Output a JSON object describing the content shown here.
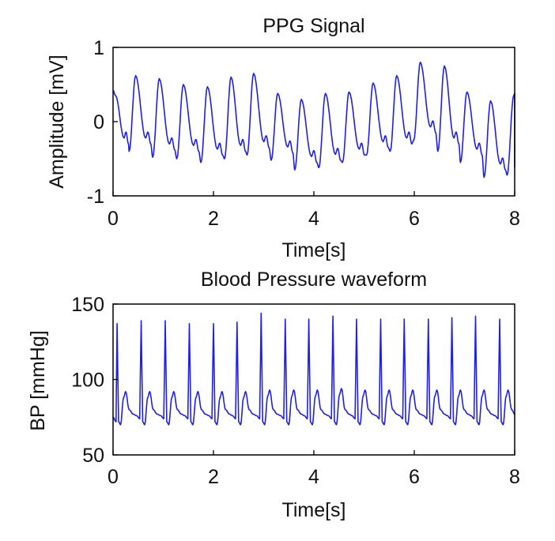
{
  "chart_data": [
    {
      "type": "line",
      "title": "PPG Signal",
      "xlabel": "Time[s]",
      "ylabel": "Amplitude [mV]",
      "xlim": [
        0,
        8
      ],
      "ylim": [
        -1,
        1
      ],
      "x_ticks": [
        "0",
        "2",
        "4",
        "6",
        "8"
      ],
      "y_ticks": [
        "-1",
        "0",
        "1"
      ],
      "grid": false,
      "line_color": "#1f1fe6",
      "beats": [
        {
          "t": 0.05,
          "peak": 0.35,
          "trough": -0.4
        },
        {
          "t": 0.45,
          "peak": 0.62,
          "trough": -0.4
        },
        {
          "t": 0.92,
          "peak": 0.58,
          "trough": -0.48
        },
        {
          "t": 1.4,
          "peak": 0.5,
          "trough": -0.5
        },
        {
          "t": 1.88,
          "peak": 0.47,
          "trough": -0.55
        },
        {
          "t": 2.35,
          "peak": 0.6,
          "trough": -0.5
        },
        {
          "t": 2.8,
          "peak": 0.65,
          "trough": -0.45
        },
        {
          "t": 3.28,
          "peak": 0.38,
          "trough": -0.52
        },
        {
          "t": 3.75,
          "peak": 0.3,
          "trough": -0.65
        },
        {
          "t": 4.23,
          "peak": 0.38,
          "trough": -0.62
        },
        {
          "t": 4.7,
          "peak": 0.4,
          "trough": -0.55
        },
        {
          "t": 5.18,
          "peak": 0.52,
          "trough": -0.45
        },
        {
          "t": 5.65,
          "peak": 0.62,
          "trough": -0.4
        },
        {
          "t": 6.12,
          "peak": 0.8,
          "trough": -0.25
        },
        {
          "t": 6.6,
          "peak": 0.75,
          "trough": -0.4
        },
        {
          "t": 7.05,
          "peak": 0.4,
          "trough": -0.55
        },
        {
          "t": 7.52,
          "peak": 0.28,
          "trough": -0.75
        },
        {
          "t": 7.98,
          "peak": 0.35,
          "trough": -0.72
        }
      ]
    },
    {
      "type": "line",
      "title": "Blood Pressure waveform",
      "xlabel": "Time[s]",
      "ylabel": "BP [mmHg]",
      "xlim": [
        0,
        8
      ],
      "ylim": [
        50,
        150
      ],
      "x_ticks": [
        "0",
        "2",
        "4",
        "6",
        "8"
      ],
      "y_ticks": [
        "50",
        "100",
        "150"
      ],
      "grid": false,
      "line_color": "#1f1fe6",
      "baseline_before_first_beat": 75,
      "beats": [
        {
          "t": 0.08,
          "peak": 137,
          "dicrotic": 92
        },
        {
          "t": 0.56,
          "peak": 139,
          "dicrotic": 92
        },
        {
          "t": 1.04,
          "peak": 139,
          "dicrotic": 92
        },
        {
          "t": 1.52,
          "peak": 137,
          "dicrotic": 92
        },
        {
          "t": 2.0,
          "peak": 137,
          "dicrotic": 92
        },
        {
          "t": 2.47,
          "peak": 138,
          "dicrotic": 92
        },
        {
          "t": 2.95,
          "peak": 144,
          "dicrotic": 93
        },
        {
          "t": 3.43,
          "peak": 140,
          "dicrotic": 93
        },
        {
          "t": 3.9,
          "peak": 140,
          "dicrotic": 93
        },
        {
          "t": 4.38,
          "peak": 142,
          "dicrotic": 94
        },
        {
          "t": 4.85,
          "peak": 140,
          "dicrotic": 93
        },
        {
          "t": 5.33,
          "peak": 140,
          "dicrotic": 93
        },
        {
          "t": 5.8,
          "peak": 140,
          "dicrotic": 93
        },
        {
          "t": 6.28,
          "peak": 140,
          "dicrotic": 93
        },
        {
          "t": 6.75,
          "peak": 141,
          "dicrotic": 93
        },
        {
          "t": 7.22,
          "peak": 142,
          "dicrotic": 93
        },
        {
          "t": 7.7,
          "peak": 140,
          "dicrotic": 93
        }
      ]
    }
  ]
}
